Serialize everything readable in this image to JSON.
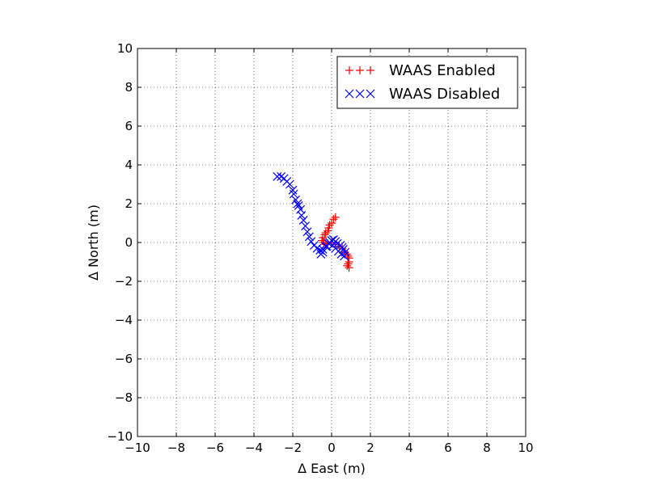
{
  "chart_data": {
    "type": "scatter",
    "title": "",
    "xlabel": "Δ East (m)",
    "ylabel": "Δ North (m)",
    "xlim": [
      -10,
      10
    ],
    "ylim": [
      -10,
      10
    ],
    "xticks": [
      -10,
      -8,
      -6,
      -4,
      -2,
      0,
      2,
      4,
      6,
      8,
      10
    ],
    "yticks": [
      -10,
      -8,
      -6,
      -4,
      -2,
      0,
      2,
      4,
      6,
      8,
      10
    ],
    "xtick_labels": [
      "−10",
      "−8",
      "−6",
      "−4",
      "−2",
      "0",
      "2",
      "4",
      "6",
      "8",
      "10"
    ],
    "ytick_labels": [
      "−10",
      "−8",
      "−6",
      "−4",
      "−2",
      "0",
      "2",
      "4",
      "6",
      "8",
      "10"
    ],
    "grid": true,
    "legend_position": "top-right",
    "series": [
      {
        "name": "WAAS Enabled",
        "marker": "plus",
        "color": "#ff0000",
        "x": [
          0.2,
          0.1,
          0.0,
          -0.1,
          -0.15,
          -0.2,
          -0.3,
          -0.35,
          -0.45,
          -0.5,
          -0.4,
          -0.3,
          -0.2,
          0.0,
          0.2,
          0.4,
          0.55,
          0.7,
          0.8,
          0.85,
          0.9,
          0.9,
          0.85,
          0.8,
          0.9
        ],
        "y": [
          1.3,
          1.2,
          1.0,
          0.9,
          0.75,
          0.6,
          0.5,
          0.4,
          0.25,
          0.1,
          0.0,
          -0.1,
          -0.05,
          0.0,
          -0.1,
          -0.2,
          -0.3,
          -0.5,
          -0.6,
          -0.7,
          -0.8,
          -1.0,
          -1.1,
          -1.2,
          -1.3
        ]
      },
      {
        "name": "WAAS Disabled",
        "marker": "x",
        "color": "#0000ff",
        "x": [
          -2.8,
          -2.6,
          -2.45,
          -2.3,
          -2.15,
          -2.0,
          -1.95,
          -1.85,
          -1.75,
          -1.7,
          -1.6,
          -1.55,
          -1.45,
          -1.35,
          -1.25,
          -1.15,
          -1.05,
          -0.9,
          -0.75,
          -0.6,
          -0.45,
          -0.3,
          -0.15,
          0.0,
          0.1,
          0.2,
          0.3,
          0.45,
          0.55,
          0.6,
          0.7,
          0.65,
          0.5,
          0.35,
          0.2,
          0.05,
          -0.1,
          -0.25,
          -0.45,
          -0.55
        ],
        "y": [
          3.4,
          3.4,
          3.3,
          3.15,
          3.0,
          2.7,
          2.5,
          2.2,
          2.0,
          1.9,
          1.7,
          1.4,
          1.15,
          0.85,
          0.55,
          0.3,
          0.05,
          -0.15,
          -0.3,
          -0.4,
          -0.35,
          -0.2,
          -0.05,
          0.1,
          0.15,
          0.05,
          -0.05,
          -0.15,
          -0.25,
          -0.35,
          -0.5,
          -0.7,
          -0.6,
          -0.45,
          -0.3,
          -0.15,
          0.0,
          -0.2,
          -0.5,
          -0.6
        ]
      }
    ]
  }
}
